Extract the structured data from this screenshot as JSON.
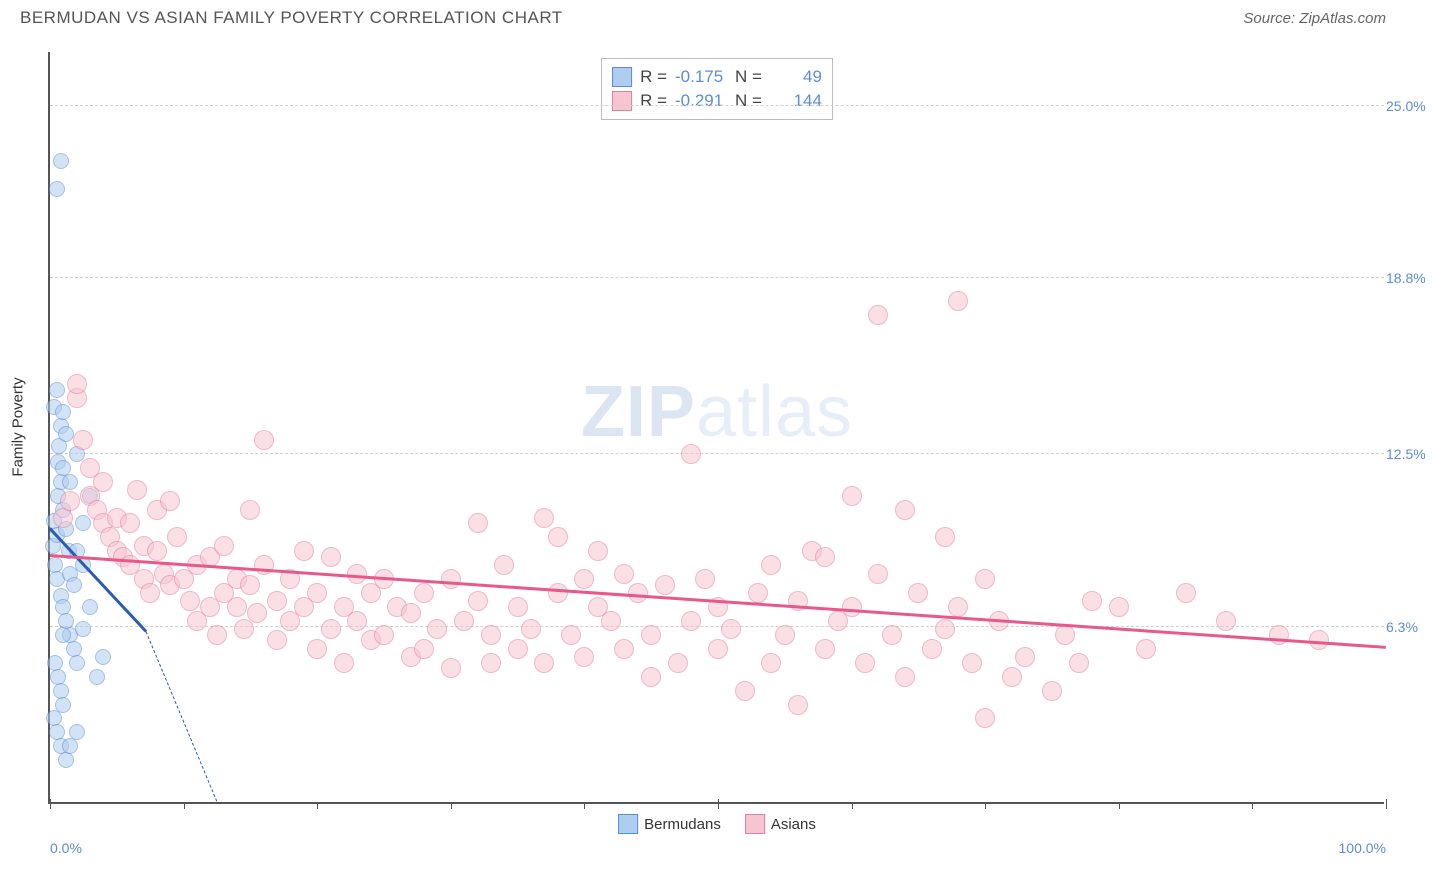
{
  "header": {
    "title": "BERMUDAN VS ASIAN FAMILY POVERTY CORRELATION CHART",
    "source_prefix": "Source: ",
    "source": "ZipAtlas.com"
  },
  "watermark": {
    "part1": "ZIP",
    "part2": "atlas"
  },
  "chart": {
    "type": "scatter",
    "background_color": "#ffffff",
    "grid_color": "#d0d0d0",
    "axis_color": "#555555",
    "tick_label_color": "#5b8dd6",
    "tick_fontsize": 14,
    "ylabel": "Family Poverty",
    "ylabel_fontsize": 15,
    "xlim": [
      0,
      100
    ],
    "ylim": [
      0,
      27
    ],
    "yticks": [
      {
        "v": 6.3,
        "label": "6.3%"
      },
      {
        "v": 12.5,
        "label": "12.5%"
      },
      {
        "v": 18.8,
        "label": "18.8%"
      },
      {
        "v": 25.0,
        "label": "25.0%"
      }
    ],
    "xticks_major": [
      0,
      50,
      100
    ],
    "xticks_minor": [
      10,
      20,
      30,
      40,
      60,
      70,
      80,
      90
    ],
    "xtick_labels": [
      {
        "v": 0,
        "label": "0.0%"
      },
      {
        "v": 100,
        "label": "100.0%"
      }
    ],
    "series": [
      {
        "name": "Bermudans",
        "fill": "#aecdf0",
        "stroke": "#5b8dd6",
        "fill_opacity": 0.55,
        "marker_radius": 8,
        "trend_color": "#2a5db0",
        "trend_width": 2.5,
        "trend": {
          "x1": 0,
          "y1": 9.8,
          "x2": 7.2,
          "y2": 6.1
        },
        "trend_ext": {
          "x1": 7.2,
          "y1": 6.1,
          "x2": 12.5,
          "y2": 0
        },
        "R": "-0.175",
        "N": "49",
        "points": [
          [
            0.2,
            9.2
          ],
          [
            0.3,
            10.1
          ],
          [
            0.4,
            8.5
          ],
          [
            0.5,
            9.6
          ],
          [
            0.6,
            11.0
          ],
          [
            0.7,
            12.8
          ],
          [
            0.8,
            13.5
          ],
          [
            0.3,
            14.2
          ],
          [
            0.5,
            14.8
          ],
          [
            1.0,
            14.0
          ],
          [
            1.2,
            13.2
          ],
          [
            0.6,
            12.2
          ],
          [
            0.8,
            11.5
          ],
          [
            1.0,
            10.5
          ],
          [
            1.2,
            9.8
          ],
          [
            1.4,
            9.0
          ],
          [
            0.5,
            8.0
          ],
          [
            0.8,
            7.4
          ],
          [
            1.0,
            7.0
          ],
          [
            1.2,
            6.5
          ],
          [
            1.5,
            6.0
          ],
          [
            1.8,
            5.5
          ],
          [
            0.4,
            5.0
          ],
          [
            0.6,
            4.5
          ],
          [
            0.8,
            4.0
          ],
          [
            1.0,
            3.5
          ],
          [
            2.0,
            5.0
          ],
          [
            2.5,
            6.2
          ],
          [
            3.0,
            7.0
          ],
          [
            1.5,
            8.2
          ],
          [
            2.0,
            9.0
          ],
          [
            2.5,
            10.0
          ],
          [
            3.0,
            11.0
          ],
          [
            0.3,
            3.0
          ],
          [
            0.5,
            2.5
          ],
          [
            0.8,
            2.0
          ],
          [
            1.2,
            1.5
          ],
          [
            1.5,
            2.0
          ],
          [
            2.0,
            2.5
          ],
          [
            0.5,
            22.0
          ],
          [
            0.8,
            23.0
          ],
          [
            3.5,
            4.5
          ],
          [
            4.0,
            5.2
          ],
          [
            1.0,
            12.0
          ],
          [
            1.5,
            11.5
          ],
          [
            2.0,
            12.5
          ],
          [
            2.5,
            8.5
          ],
          [
            1.8,
            7.8
          ],
          [
            1.0,
            6.0
          ]
        ]
      },
      {
        "name": "Asians",
        "fill": "#f7c5d1",
        "stroke": "#e37fa0",
        "fill_opacity": 0.55,
        "marker_radius": 10,
        "trend_color": "#e8588a",
        "trend_width": 2.5,
        "trend": {
          "x1": 0,
          "y1": 8.8,
          "x2": 100,
          "y2": 5.5
        },
        "R": "-0.291",
        "N": "144",
        "points": [
          [
            1.0,
            10.2
          ],
          [
            1.5,
            10.8
          ],
          [
            2.0,
            14.5
          ],
          [
            2.0,
            15.0
          ],
          [
            2.5,
            13.0
          ],
          [
            3.0,
            12.0
          ],
          [
            3.0,
            11.0
          ],
          [
            3.5,
            10.5
          ],
          [
            4.0,
            10.0
          ],
          [
            4.0,
            11.5
          ],
          [
            4.5,
            9.5
          ],
          [
            5.0,
            9.0
          ],
          [
            5.0,
            10.2
          ],
          [
            5.5,
            8.8
          ],
          [
            6.0,
            8.5
          ],
          [
            6.0,
            10.0
          ],
          [
            6.5,
            11.2
          ],
          [
            7.0,
            9.2
          ],
          [
            7.0,
            8.0
          ],
          [
            7.5,
            7.5
          ],
          [
            8.0,
            10.5
          ],
          [
            8.0,
            9.0
          ],
          [
            8.5,
            8.2
          ],
          [
            9.0,
            7.8
          ],
          [
            9.0,
            10.8
          ],
          [
            9.5,
            9.5
          ],
          [
            10.0,
            8.0
          ],
          [
            10.5,
            7.2
          ],
          [
            11.0,
            8.5
          ],
          [
            11.0,
            6.5
          ],
          [
            12.0,
            7.0
          ],
          [
            12.0,
            8.8
          ],
          [
            12.5,
            6.0
          ],
          [
            13.0,
            7.5
          ],
          [
            13.0,
            9.2
          ],
          [
            14.0,
            8.0
          ],
          [
            14.0,
            7.0
          ],
          [
            14.5,
            6.2
          ],
          [
            15.0,
            10.5
          ],
          [
            15.0,
            7.8
          ],
          [
            15.5,
            6.8
          ],
          [
            16.0,
            13.0
          ],
          [
            16.0,
            8.5
          ],
          [
            17.0,
            7.2
          ],
          [
            17.0,
            5.8
          ],
          [
            18.0,
            6.5
          ],
          [
            18.0,
            8.0
          ],
          [
            19.0,
            7.0
          ],
          [
            19.0,
            9.0
          ],
          [
            20.0,
            5.5
          ],
          [
            20.0,
            7.5
          ],
          [
            21.0,
            8.8
          ],
          [
            21.0,
            6.2
          ],
          [
            22.0,
            7.0
          ],
          [
            22.0,
            5.0
          ],
          [
            23.0,
            6.5
          ],
          [
            23.0,
            8.2
          ],
          [
            24.0,
            5.8
          ],
          [
            24.0,
            7.5
          ],
          [
            25.0,
            6.0
          ],
          [
            25.0,
            8.0
          ],
          [
            26.0,
            7.0
          ],
          [
            27.0,
            5.2
          ],
          [
            27.0,
            6.8
          ],
          [
            28.0,
            7.5
          ],
          [
            28.0,
            5.5
          ],
          [
            29.0,
            6.2
          ],
          [
            30.0,
            8.0
          ],
          [
            30.0,
            4.8
          ],
          [
            31.0,
            6.5
          ],
          [
            32.0,
            10.0
          ],
          [
            32.0,
            7.2
          ],
          [
            33.0,
            5.0
          ],
          [
            33.0,
            6.0
          ],
          [
            34.0,
            8.5
          ],
          [
            35.0,
            5.5
          ],
          [
            35.0,
            7.0
          ],
          [
            36.0,
            6.2
          ],
          [
            37.0,
            10.2
          ],
          [
            37.0,
            5.0
          ],
          [
            38.0,
            9.5
          ],
          [
            38.0,
            7.5
          ],
          [
            39.0,
            6.0
          ],
          [
            40.0,
            8.0
          ],
          [
            40.0,
            5.2
          ],
          [
            41.0,
            7.0
          ],
          [
            41.0,
            9.0
          ],
          [
            42.0,
            6.5
          ],
          [
            43.0,
            8.2
          ],
          [
            43.0,
            5.5
          ],
          [
            44.0,
            7.5
          ],
          [
            45.0,
            6.0
          ],
          [
            45.0,
            4.5
          ],
          [
            46.0,
            7.8
          ],
          [
            47.0,
            5.0
          ],
          [
            48.0,
            12.5
          ],
          [
            48.0,
            6.5
          ],
          [
            49.0,
            8.0
          ],
          [
            50.0,
            7.0
          ],
          [
            50.0,
            5.5
          ],
          [
            51.0,
            6.2
          ],
          [
            52.0,
            4.0
          ],
          [
            53.0,
            7.5
          ],
          [
            54.0,
            8.5
          ],
          [
            54.0,
            5.0
          ],
          [
            55.0,
            6.0
          ],
          [
            56.0,
            7.2
          ],
          [
            56.0,
            3.5
          ],
          [
            57.0,
            9.0
          ],
          [
            58.0,
            5.5
          ],
          [
            58.0,
            8.8
          ],
          [
            59.0,
            6.5
          ],
          [
            60.0,
            11.0
          ],
          [
            60.0,
            7.0
          ],
          [
            61.0,
            5.0
          ],
          [
            62.0,
            17.5
          ],
          [
            62.0,
            8.2
          ],
          [
            63.0,
            6.0
          ],
          [
            64.0,
            10.5
          ],
          [
            64.0,
            4.5
          ],
          [
            65.0,
            7.5
          ],
          [
            66.0,
            5.5
          ],
          [
            67.0,
            9.5
          ],
          [
            67.0,
            6.2
          ],
          [
            68.0,
            18.0
          ],
          [
            68.0,
            7.0
          ],
          [
            69.0,
            5.0
          ],
          [
            70.0,
            8.0
          ],
          [
            70.0,
            3.0
          ],
          [
            71.0,
            6.5
          ],
          [
            72.0,
            4.5
          ],
          [
            73.0,
            5.2
          ],
          [
            75.0,
            4.0
          ],
          [
            76.0,
            6.0
          ],
          [
            77.0,
            5.0
          ],
          [
            78.0,
            7.2
          ],
          [
            80.0,
            7.0
          ],
          [
            82.0,
            5.5
          ],
          [
            85.0,
            7.5
          ],
          [
            88.0,
            6.5
          ],
          [
            92.0,
            6.0
          ],
          [
            95.0,
            5.8
          ]
        ]
      }
    ],
    "legend": {
      "items": [
        {
          "label": "Bermudans",
          "fill": "#aecdf0",
          "stroke": "#5b8dd6"
        },
        {
          "label": "Asians",
          "fill": "#f7c5d1",
          "stroke": "#e37fa0"
        }
      ]
    },
    "stats_box": {
      "R_label": "R =",
      "N_label": "N ="
    }
  }
}
